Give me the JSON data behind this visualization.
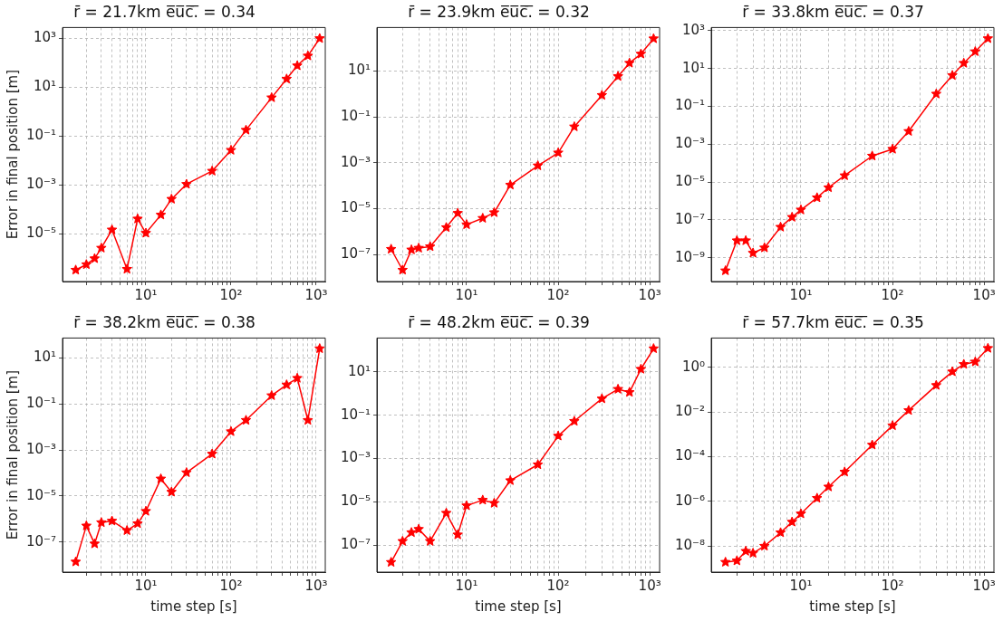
{
  "chart_data": [
    {
      "type": "line",
      "title": "r̄ = 21.7km e̅u̅c̅.̅ = 0.34",
      "ylabel": "Error in final position [m]",
      "log": "xy",
      "grid": true,
      "legend": false,
      "marker": "star",
      "line_style": "solid",
      "x": [
        1.5,
        2,
        2.5,
        3,
        4,
        6,
        8,
        10,
        15,
        20,
        30,
        60,
        100,
        150,
        300,
        450,
        600,
        800,
        1100
      ],
      "series": [
        {
          "color": "#ff0000",
          "values": [
            3.4e-07,
            5.7e-07,
            1e-06,
            2.7e-06,
            1.5e-05,
            3.7e-07,
            4.2e-05,
            1.1e-05,
            6.1e-05,
            0.00027,
            0.0011,
            0.0038,
            0.027,
            0.18,
            3.8,
            22,
            77,
            195,
            1000
          ]
        }
      ],
      "xlim": [
        1.05,
        1280
      ],
      "xticks": [
        {
          "value": 2,
          "label": null
        },
        {
          "value": 3,
          "label": null
        },
        {
          "value": 4,
          "label": null
        },
        {
          "value": 5,
          "label": null
        },
        {
          "value": 6,
          "label": null
        },
        {
          "value": 7,
          "label": null
        },
        {
          "value": 8,
          "label": null
        },
        {
          "value": 9,
          "label": null
        },
        {
          "value": 10,
          "label": "10¹"
        },
        {
          "value": 20,
          "label": null
        },
        {
          "value": 30,
          "label": null
        },
        {
          "value": 40,
          "label": null
        },
        {
          "value": 50,
          "label": null
        },
        {
          "value": 60,
          "label": null
        },
        {
          "value": 70,
          "label": null
        },
        {
          "value": 80,
          "label": null
        },
        {
          "value": 90,
          "label": null
        },
        {
          "value": 100,
          "label": "10²"
        },
        {
          "value": 200,
          "label": null
        },
        {
          "value": 300,
          "label": null
        },
        {
          "value": 400,
          "label": null
        },
        {
          "value": 500,
          "label": null
        },
        {
          "value": 600,
          "label": null
        },
        {
          "value": 700,
          "label": null
        },
        {
          "value": 800,
          "label": null
        },
        {
          "value": 900,
          "label": null
        },
        {
          "value": 1000,
          "label": "10³"
        }
      ],
      "ylim": [
        1.15e-07,
        2800
      ],
      "yticks": [
        {
          "value": 1e-05,
          "label": "10⁻⁵"
        },
        {
          "value": 0.001,
          "label": "10⁻³"
        },
        {
          "value": 0.1,
          "label": "10⁻¹"
        },
        {
          "value": 10,
          "label": "10¹"
        },
        {
          "value": 1000,
          "label": "10³"
        }
      ]
    },
    {
      "type": "line",
      "title": "r̄ = 23.9km e̅u̅c̅.̅ = 0.32",
      "log": "xy",
      "grid": true,
      "legend": false,
      "marker": "star",
      "line_style": "solid",
      "x": [
        1.5,
        2,
        2.5,
        3,
        4,
        6,
        8,
        10,
        15,
        20,
        30,
        60,
        100,
        150,
        300,
        450,
        600,
        800,
        1100
      ],
      "series": [
        {
          "color": "#ff0000",
          "values": [
            1.7e-07,
            2.1e-08,
            1.6e-07,
            1.9e-07,
            2.2e-07,
            1.5e-06,
            6.3e-06,
            2e-06,
            3.8e-06,
            6.7e-06,
            0.000107,
            0.00074,
            0.0027,
            0.037,
            0.87,
            5.8,
            22,
            55,
            256
          ]
        }
      ],
      "xlim": [
        1.05,
        1280
      ],
      "xticks": [
        {
          "value": 2,
          "label": null
        },
        {
          "value": 3,
          "label": null
        },
        {
          "value": 4,
          "label": null
        },
        {
          "value": 5,
          "label": null
        },
        {
          "value": 6,
          "label": null
        },
        {
          "value": 7,
          "label": null
        },
        {
          "value": 8,
          "label": null
        },
        {
          "value": 9,
          "label": null
        },
        {
          "value": 10,
          "label": "10¹"
        },
        {
          "value": 20,
          "label": null
        },
        {
          "value": 30,
          "label": null
        },
        {
          "value": 40,
          "label": null
        },
        {
          "value": 50,
          "label": null
        },
        {
          "value": 60,
          "label": null
        },
        {
          "value": 70,
          "label": null
        },
        {
          "value": 80,
          "label": null
        },
        {
          "value": 90,
          "label": null
        },
        {
          "value": 100,
          "label": "10²"
        },
        {
          "value": 200,
          "label": null
        },
        {
          "value": 300,
          "label": null
        },
        {
          "value": 400,
          "label": null
        },
        {
          "value": 500,
          "label": null
        },
        {
          "value": 600,
          "label": null
        },
        {
          "value": 700,
          "label": null
        },
        {
          "value": 800,
          "label": null
        },
        {
          "value": 900,
          "label": null
        },
        {
          "value": 1000,
          "label": "10³"
        }
      ],
      "ylim": [
        6.6e-09,
        780
      ],
      "yticks": [
        {
          "value": 1e-07,
          "label": "10⁻⁷"
        },
        {
          "value": 1e-05,
          "label": "10⁻⁵"
        },
        {
          "value": 0.001,
          "label": "10⁻³"
        },
        {
          "value": 0.1,
          "label": "10⁻¹"
        },
        {
          "value": 10,
          "label": "10¹"
        }
      ]
    },
    {
      "type": "line",
      "title": "r̄ = 33.8km e̅u̅c̅.̅ = 0.37",
      "log": "xy",
      "grid": true,
      "legend": false,
      "marker": "star",
      "line_style": "solid",
      "x": [
        1.5,
        2,
        2.5,
        3,
        4,
        6,
        8,
        10,
        15,
        20,
        30,
        60,
        100,
        150,
        300,
        450,
        600,
        800,
        1100
      ],
      "series": [
        {
          "color": "#ff0000",
          "values": [
            2.1e-10,
            8.1e-09,
            8.1e-09,
            1.8e-09,
            3.4e-09,
            4.2e-08,
            1.4e-07,
            3.4e-07,
            1.5e-06,
            5.1e-06,
            2.2e-05,
            0.00024,
            0.00055,
            0.0048,
            0.45,
            4.3,
            19,
            78,
            380
          ]
        }
      ],
      "xlim": [
        1.05,
        1280
      ],
      "xticks": [
        {
          "value": 2,
          "label": null
        },
        {
          "value": 3,
          "label": null
        },
        {
          "value": 4,
          "label": null
        },
        {
          "value": 5,
          "label": null
        },
        {
          "value": 6,
          "label": null
        },
        {
          "value": 7,
          "label": null
        },
        {
          "value": 8,
          "label": null
        },
        {
          "value": 9,
          "label": null
        },
        {
          "value": 10,
          "label": "10¹"
        },
        {
          "value": 20,
          "label": null
        },
        {
          "value": 30,
          "label": null
        },
        {
          "value": 40,
          "label": null
        },
        {
          "value": 50,
          "label": null
        },
        {
          "value": 60,
          "label": null
        },
        {
          "value": 70,
          "label": null
        },
        {
          "value": 80,
          "label": null
        },
        {
          "value": 90,
          "label": null
        },
        {
          "value": 100,
          "label": "10²"
        },
        {
          "value": 200,
          "label": null
        },
        {
          "value": 300,
          "label": null
        },
        {
          "value": 400,
          "label": null
        },
        {
          "value": 500,
          "label": null
        },
        {
          "value": 600,
          "label": null
        },
        {
          "value": 700,
          "label": null
        },
        {
          "value": 800,
          "label": null
        },
        {
          "value": 900,
          "label": null
        },
        {
          "value": 1000,
          "label": "10³"
        }
      ],
      "ylim": [
        5.6e-11,
        1450
      ],
      "yticks": [
        {
          "value": 1e-09,
          "label": "10⁻⁹"
        },
        {
          "value": 1e-07,
          "label": "10⁻⁷"
        },
        {
          "value": 1e-05,
          "label": "10⁻⁵"
        },
        {
          "value": 0.001,
          "label": "10⁻³"
        },
        {
          "value": 0.1,
          "label": "10⁻¹"
        },
        {
          "value": 10,
          "label": "10¹"
        },
        {
          "value": 1000,
          "label": "10³"
        }
      ]
    },
    {
      "type": "line",
      "title": "r̄ = 38.2km e̅u̅c̅.̅ = 0.38",
      "xlabel": "time step [s]",
      "ylabel": "Error in final position [m]",
      "log": "xy",
      "grid": true,
      "legend": false,
      "marker": "star",
      "line_style": "solid",
      "x": [
        1.5,
        2,
        2.5,
        3,
        4,
        6,
        8,
        10,
        15,
        20,
        30,
        60,
        100,
        150,
        300,
        450,
        600,
        800,
        1100
      ],
      "series": [
        {
          "color": "#ff0000",
          "values": [
            1.4e-08,
            5.1e-07,
            8.5e-08,
            7.1e-07,
            8.3e-07,
            3.2e-07,
            6.4e-07,
            2.2e-06,
            5.6e-05,
            1.5e-05,
            0.000104,
            0.00067,
            0.0063,
            0.0195,
            0.23,
            0.67,
            1.3,
            0.0195,
            25
          ]
        }
      ],
      "xlim": [
        1.05,
        1280
      ],
      "xticks": [
        {
          "value": 2,
          "label": null
        },
        {
          "value": 3,
          "label": null
        },
        {
          "value": 4,
          "label": null
        },
        {
          "value": 5,
          "label": null
        },
        {
          "value": 6,
          "label": null
        },
        {
          "value": 7,
          "label": null
        },
        {
          "value": 8,
          "label": null
        },
        {
          "value": 9,
          "label": null
        },
        {
          "value": 10,
          "label": "10¹"
        },
        {
          "value": 20,
          "label": null
        },
        {
          "value": 30,
          "label": null
        },
        {
          "value": 40,
          "label": null
        },
        {
          "value": 50,
          "label": null
        },
        {
          "value": 60,
          "label": null
        },
        {
          "value": 70,
          "label": null
        },
        {
          "value": 80,
          "label": null
        },
        {
          "value": 90,
          "label": null
        },
        {
          "value": 100,
          "label": "10²"
        },
        {
          "value": 200,
          "label": null
        },
        {
          "value": 300,
          "label": null
        },
        {
          "value": 400,
          "label": null
        },
        {
          "value": 500,
          "label": null
        },
        {
          "value": 600,
          "label": null
        },
        {
          "value": 700,
          "label": null
        },
        {
          "value": 800,
          "label": null
        },
        {
          "value": 900,
          "label": null
        },
        {
          "value": 1000,
          "label": "10³"
        }
      ],
      "ylim": [
        5e-09,
        72
      ],
      "yticks": [
        {
          "value": 1e-07,
          "label": "10⁻⁷"
        },
        {
          "value": 1e-05,
          "label": "10⁻⁵"
        },
        {
          "value": 0.001,
          "label": "10⁻³"
        },
        {
          "value": 0.1,
          "label": "10⁻¹"
        },
        {
          "value": 10,
          "label": "10¹"
        }
      ]
    },
    {
      "type": "line",
      "title": "r̄ = 48.2km e̅u̅c̅.̅ = 0.39",
      "xlabel": "time step [s]",
      "log": "xy",
      "grid": true,
      "legend": false,
      "marker": "star",
      "line_style": "solid",
      "x": [
        1.5,
        2,
        2.5,
        3,
        4,
        6,
        8,
        10,
        15,
        20,
        30,
        60,
        100,
        150,
        300,
        450,
        600,
        800,
        1100
      ],
      "series": [
        {
          "color": "#ff0000",
          "values": [
            1.6e-08,
            1.5e-07,
            3.8e-07,
            5.4e-07,
            1.5e-07,
            3e-06,
            3e-07,
            6.6e-06,
            1.2e-05,
            8.6e-06,
            9.6e-05,
            0.00052,
            0.011,
            0.053,
            0.58,
            1.6,
            1.15,
            13.5,
            120
          ]
        }
      ],
      "xlim": [
        1.05,
        1280
      ],
      "xticks": [
        {
          "value": 2,
          "label": null
        },
        {
          "value": 3,
          "label": null
        },
        {
          "value": 4,
          "label": null
        },
        {
          "value": 5,
          "label": null
        },
        {
          "value": 6,
          "label": null
        },
        {
          "value": 7,
          "label": null
        },
        {
          "value": 8,
          "label": null
        },
        {
          "value": 9,
          "label": null
        },
        {
          "value": 10,
          "label": "10¹"
        },
        {
          "value": 20,
          "label": null
        },
        {
          "value": 30,
          "label": null
        },
        {
          "value": 40,
          "label": null
        },
        {
          "value": 50,
          "label": null
        },
        {
          "value": 60,
          "label": null
        },
        {
          "value": 70,
          "label": null
        },
        {
          "value": 80,
          "label": null
        },
        {
          "value": 90,
          "label": null
        },
        {
          "value": 100,
          "label": "10²"
        },
        {
          "value": 200,
          "label": null
        },
        {
          "value": 300,
          "label": null
        },
        {
          "value": 400,
          "label": null
        },
        {
          "value": 500,
          "label": null
        },
        {
          "value": 600,
          "label": null
        },
        {
          "value": 700,
          "label": null
        },
        {
          "value": 800,
          "label": null
        },
        {
          "value": 900,
          "label": null
        },
        {
          "value": 1000,
          "label": "10³"
        }
      ],
      "ylim": [
        5.6e-09,
        370
      ],
      "yticks": [
        {
          "value": 1e-07,
          "label": "10⁻⁷"
        },
        {
          "value": 1e-05,
          "label": "10⁻⁵"
        },
        {
          "value": 0.001,
          "label": "10⁻³"
        },
        {
          "value": 0.1,
          "label": "10⁻¹"
        },
        {
          "value": 10,
          "label": "10¹"
        }
      ]
    },
    {
      "type": "line",
      "title": "r̄ = 57.7km e̅u̅c̅.̅ = 0.35",
      "xlabel": "time step [s]",
      "log": "xy",
      "grid": true,
      "legend": false,
      "marker": "star",
      "line_style": "solid",
      "x": [
        1.5,
        2,
        2.5,
        3,
        4,
        6,
        8,
        10,
        15,
        20,
        30,
        60,
        100,
        150,
        300,
        450,
        600,
        800,
        1100
      ],
      "series": [
        {
          "color": "#ff0000",
          "values": [
            1.9e-09,
            2.2e-09,
            5.9e-09,
            4.8e-09,
            1e-08,
            4e-08,
            1.2e-07,
            2.8e-07,
            1.4e-06,
            4.5e-06,
            2.1e-05,
            0.00034,
            0.0025,
            0.012,
            0.16,
            0.65,
            1.4,
            1.8,
            7.3
          ]
        }
      ],
      "xlim": [
        1.05,
        1280
      ],
      "xticks": [
        {
          "value": 2,
          "label": null
        },
        {
          "value": 3,
          "label": null
        },
        {
          "value": 4,
          "label": null
        },
        {
          "value": 5,
          "label": null
        },
        {
          "value": 6,
          "label": null
        },
        {
          "value": 7,
          "label": null
        },
        {
          "value": 8,
          "label": null
        },
        {
          "value": 9,
          "label": null
        },
        {
          "value": 10,
          "label": "10¹"
        },
        {
          "value": 20,
          "label": null
        },
        {
          "value": 30,
          "label": null
        },
        {
          "value": 40,
          "label": null
        },
        {
          "value": 50,
          "label": null
        },
        {
          "value": 60,
          "label": null
        },
        {
          "value": 70,
          "label": null
        },
        {
          "value": 80,
          "label": null
        },
        {
          "value": 90,
          "label": null
        },
        {
          "value": 100,
          "label": "10²"
        },
        {
          "value": 200,
          "label": null
        },
        {
          "value": 300,
          "label": null
        },
        {
          "value": 400,
          "label": null
        },
        {
          "value": 500,
          "label": null
        },
        {
          "value": 600,
          "label": null
        },
        {
          "value": 700,
          "label": null
        },
        {
          "value": 800,
          "label": null
        },
        {
          "value": 900,
          "label": null
        },
        {
          "value": 1000,
          "label": "10³"
        }
      ],
      "ylim": [
        6.8e-10,
        21
      ],
      "yticks": [
        {
          "value": 1e-08,
          "label": "10⁻⁸"
        },
        {
          "value": 1e-06,
          "label": "10⁻⁶"
        },
        {
          "value": 0.0001,
          "label": "10⁻⁴"
        },
        {
          "value": 0.01,
          "label": "10⁻²"
        },
        {
          "value": 1,
          "label": "10⁰"
        }
      ]
    }
  ]
}
